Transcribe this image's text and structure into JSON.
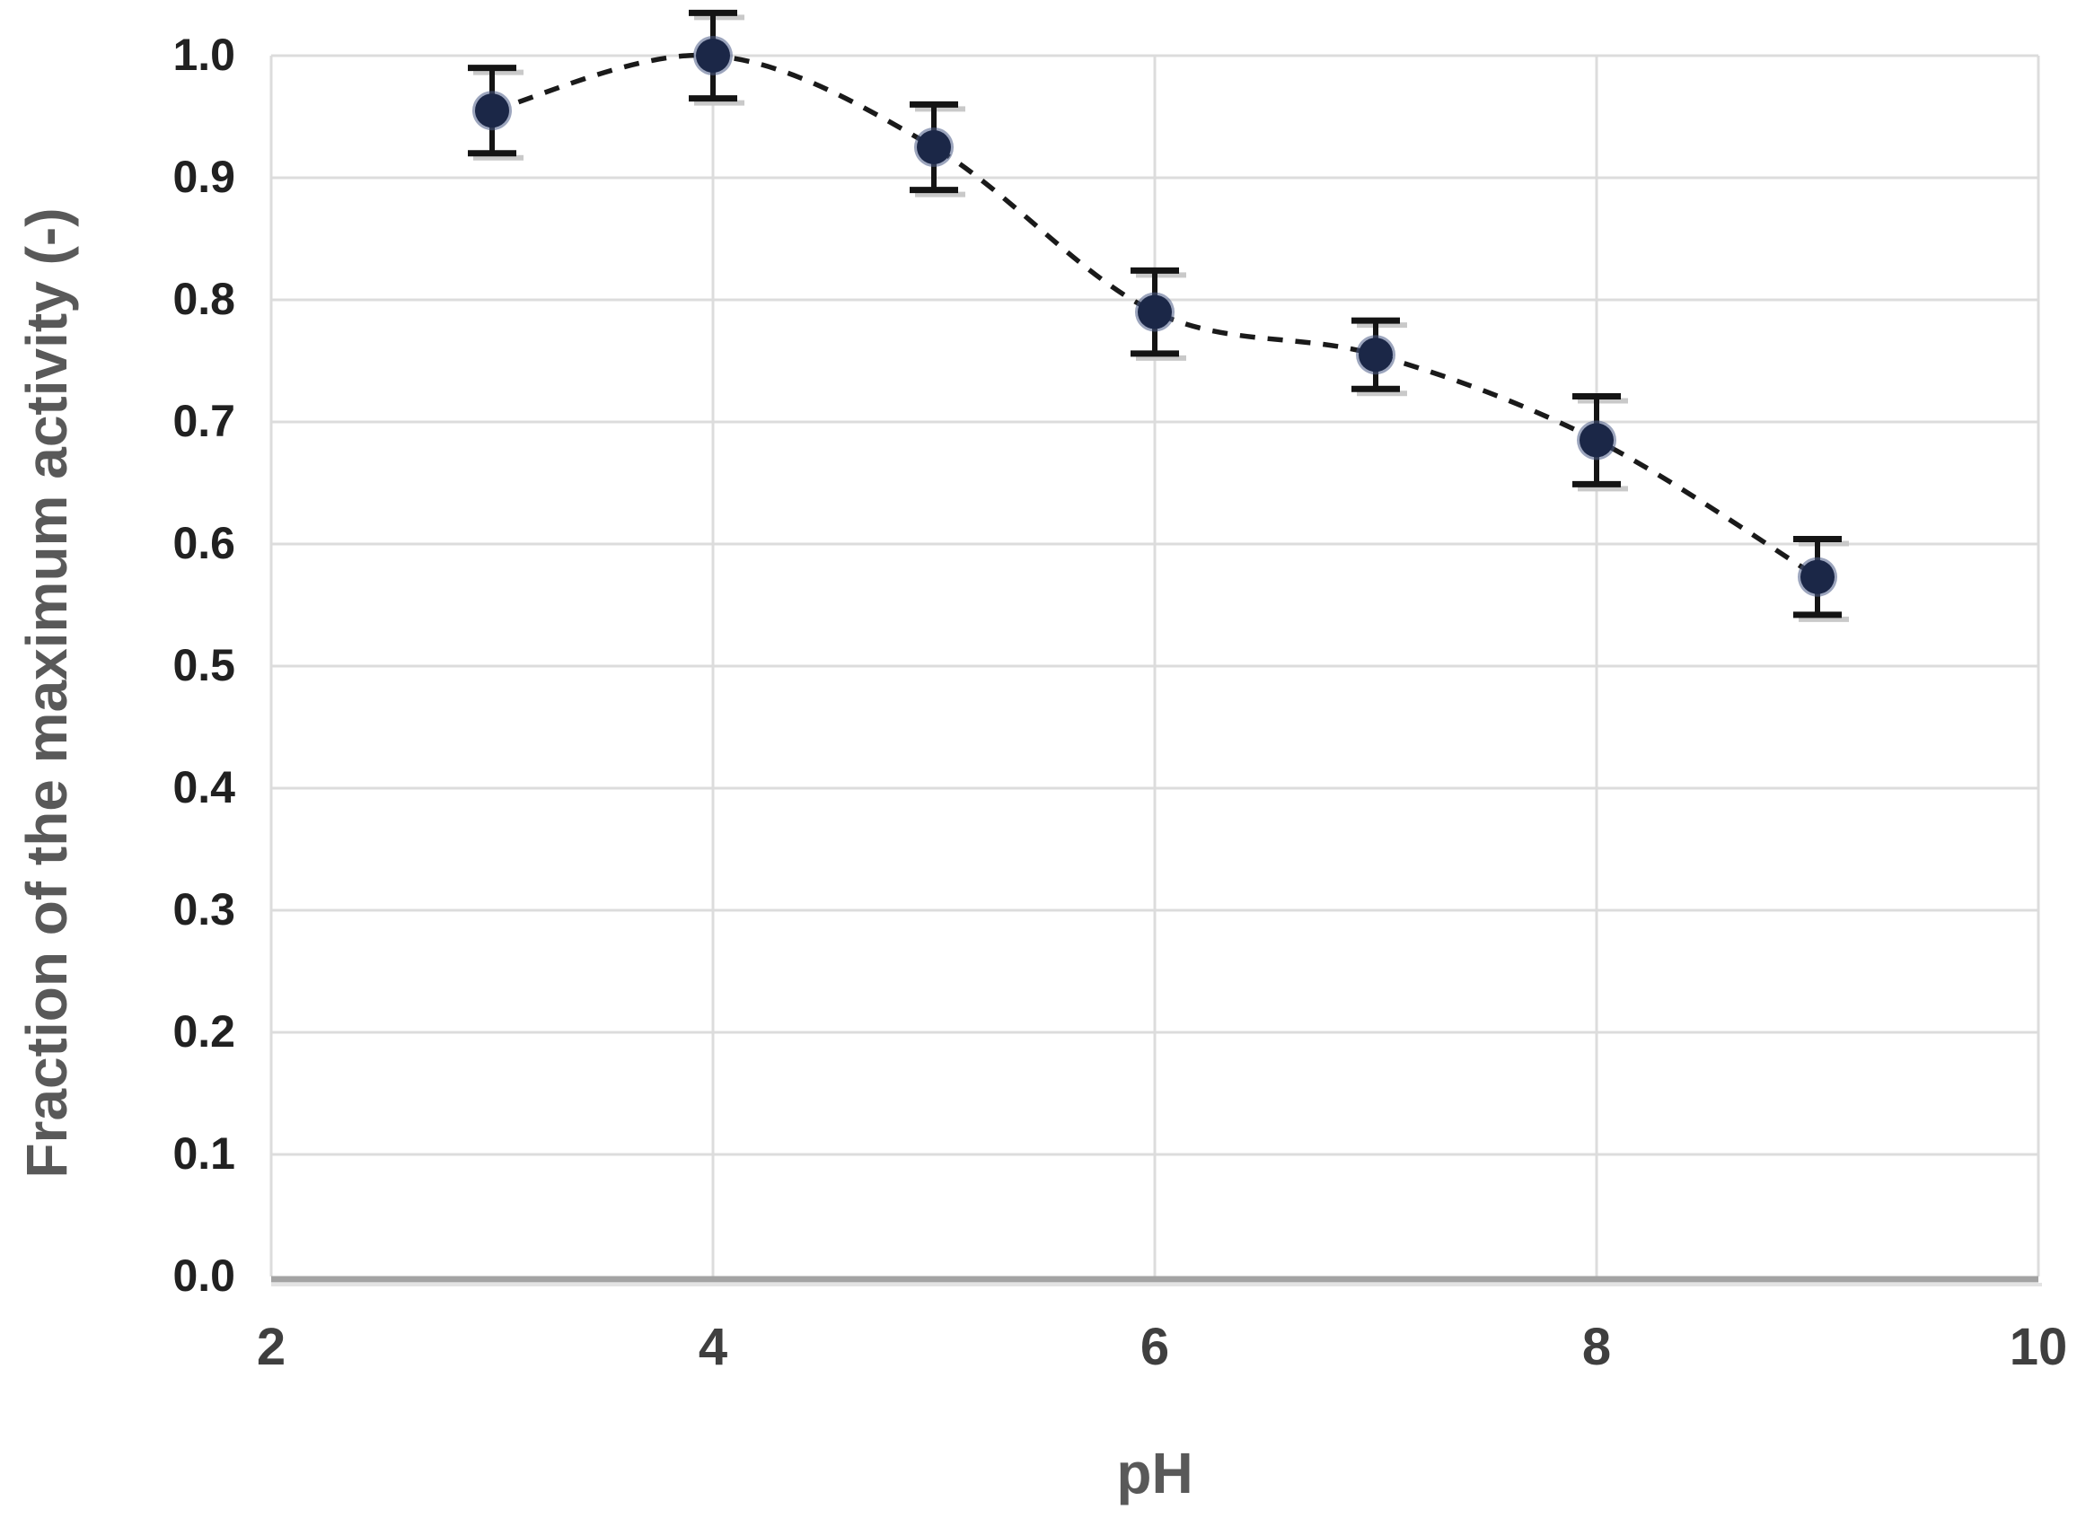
{
  "chart_data": {
    "type": "scatter",
    "title": "",
    "xlabel": "pH",
    "ylabel": "Fraction of the maximum activity (-)",
    "x": [
      3,
      4,
      5,
      6,
      7,
      8,
      9
    ],
    "y": [
      0.955,
      1.0,
      0.925,
      0.79,
      0.755,
      0.685,
      0.573
    ],
    "yerr": [
      0.035,
      0.035,
      0.035,
      0.034,
      0.028,
      0.036,
      0.031
    ],
    "xlim": [
      2,
      10
    ],
    "ylim": [
      0.0,
      1.0
    ],
    "x_ticks": [
      "2",
      "4",
      "6",
      "8",
      "10"
    ],
    "y_ticks": [
      "0.0",
      "0.1",
      "0.2",
      "0.3",
      "0.4",
      "0.5",
      "0.6",
      "0.7",
      "0.8",
      "0.9",
      "1.0"
    ],
    "grid": {
      "horizontal_step": 0.1,
      "vertical_step": 2,
      "gridlines_on": true
    },
    "legend": "none",
    "line_style": "dashed-smooth",
    "marker": "filled-circle",
    "colors": {
      "background": "#ffffff",
      "gridline": "#dcdcdc",
      "axis_line": "#a3a3a3",
      "axis_line_shadow": "#e3e3e3",
      "marker_fill": "#1b2747",
      "marker_halo": "#4b5b86",
      "error_bar": "#141414",
      "error_cap_shadow": "#c9c9c9",
      "dashed_line": "#1a1a1a",
      "x_tick_label": "#3f3f3f",
      "y_tick_label": "#212121",
      "axis_title": "#595959"
    }
  }
}
